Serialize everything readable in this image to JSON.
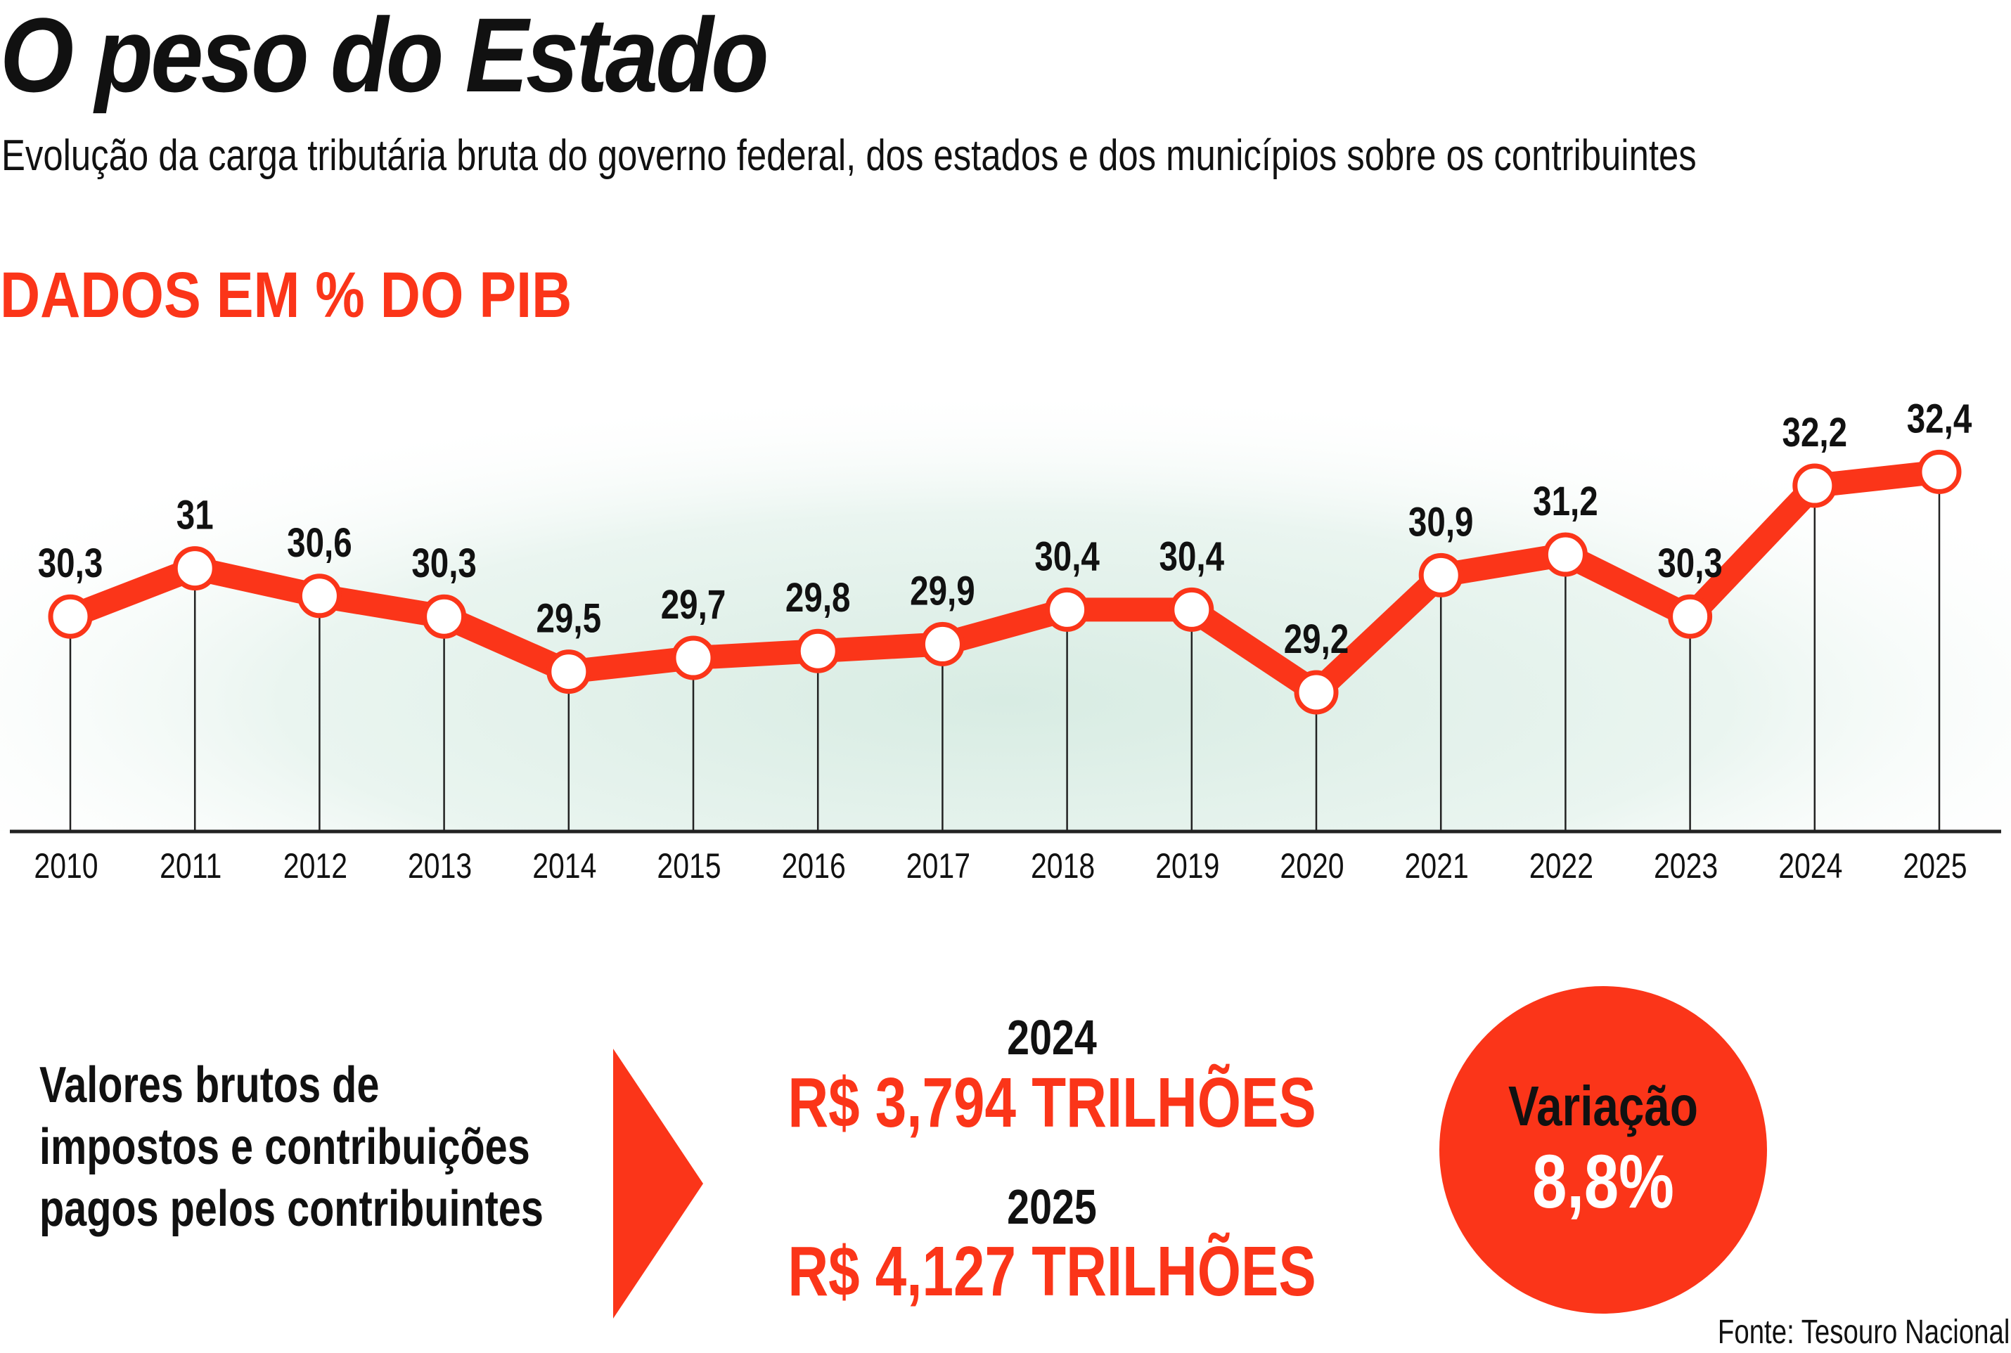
{
  "header": {
    "title": "O peso do Estado",
    "subtitle": "Evolução da carga tributária bruta do governo federal, dos estados e dos municípios sobre os contribuintes",
    "unit_label": "DADOS EM % DO PIB"
  },
  "chart_data": {
    "type": "line",
    "title": "",
    "ylabel": "DADOS EM % DO PIB",
    "x": [
      "2010",
      "2011",
      "2012",
      "2013",
      "2014",
      "2015",
      "2016",
      "2017",
      "2018",
      "2019",
      "2020",
      "2021",
      "2022",
      "2023",
      "2024",
      "2025"
    ],
    "series": [
      {
        "values": [
          30.3,
          31,
          30.6,
          30.3,
          29.5,
          29.7,
          29.8,
          29.9,
          30.4,
          30.4,
          29.2,
          30.9,
          31.2,
          30.3,
          32.2,
          32.4
        ]
      }
    ],
    "data_labels": [
      "30,3",
      "31",
      "30,6",
      "30,3",
      "29,5",
      "29,7",
      "29,8",
      "29,9",
      "30,4",
      "30,4",
      "29,2",
      "30,9",
      "31,2",
      "30,3",
      "32,2",
      "32,4"
    ],
    "grid": false,
    "line_color": "#fb3519",
    "marker_fill": "#ffffff"
  },
  "summary": {
    "description_lines": [
      "Valores brutos de",
      "impostos e contribuições",
      "pagos pelos contribuintes"
    ],
    "year_a": "2024",
    "amount_a": "R$ 3,794 TRILHÕES",
    "year_b": "2025",
    "amount_b": "R$ 4,127 TRILHÕES",
    "variation_label": "Variação",
    "variation_value": "8,8%"
  },
  "source": "Fonte: Tesouro Nacional",
  "colors": {
    "accent": "#fb3519",
    "background_glow": "#dff0e8"
  }
}
